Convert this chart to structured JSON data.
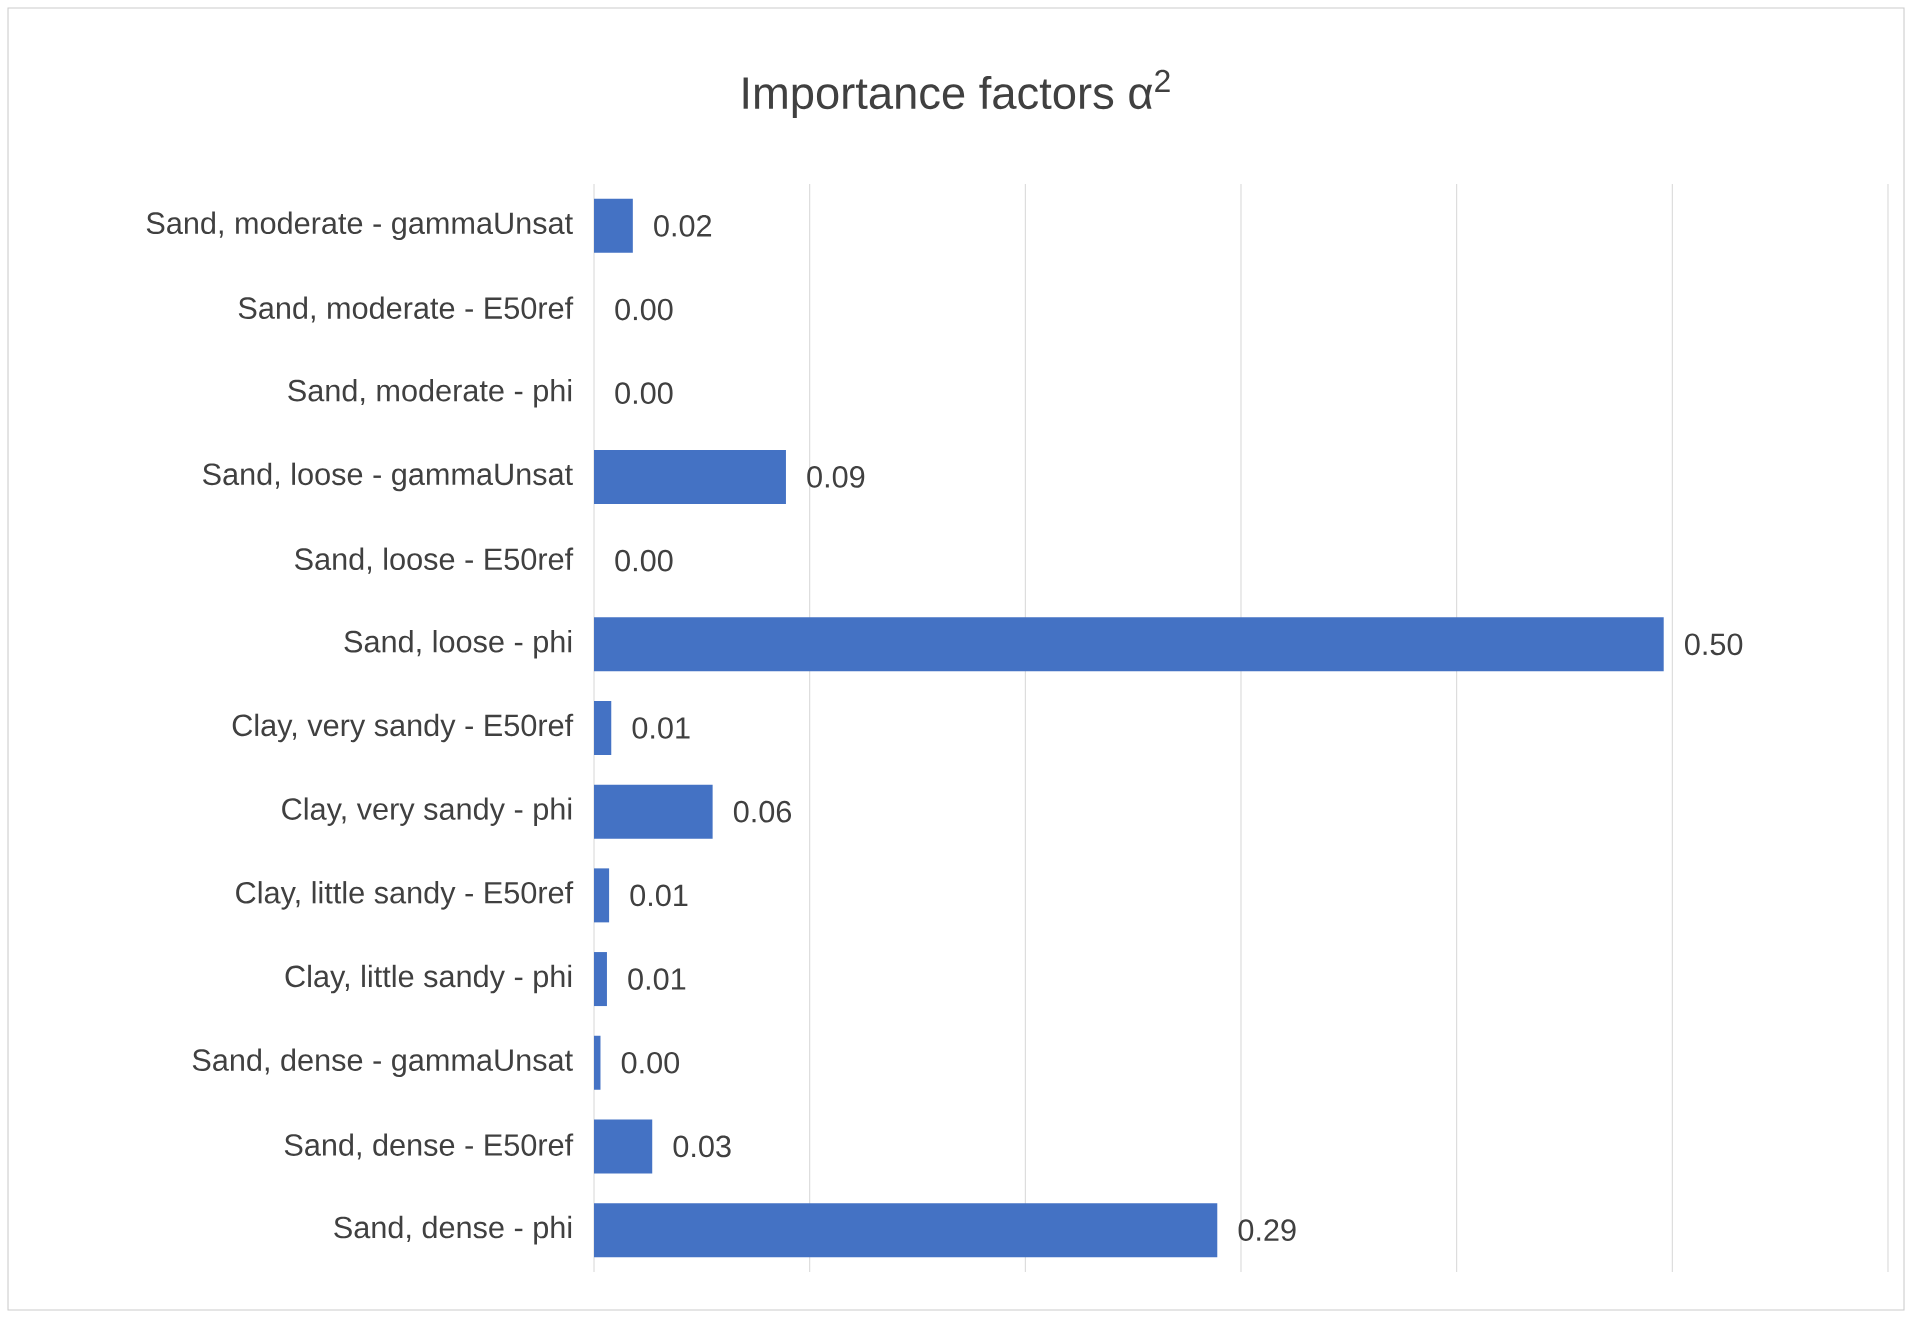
{
  "chart_data": {
    "type": "bar",
    "orientation": "horizontal",
    "title": "Importance factors α$^{2}$",
    "categories": [
      "Sand, moderate - gammaUnsat",
      "Sand, moderate - E50ref",
      "Sand, moderate - phi",
      "Sand, loose - gammaUnsat",
      "Sand, loose - E50ref",
      "Sand, loose - phi",
      "Clay, very sandy  - E50ref",
      "Clay, very sandy  - phi",
      "Clay, little sandy - E50ref",
      "Clay, little sandy - phi",
      "Sand, dense - gammaUnsat",
      "Sand, dense - E50ref",
      "Sand, dense - phi"
    ],
    "values": [
      0.018,
      0,
      0,
      0.089,
      0,
      0.496,
      0.008,
      0.055,
      0.007,
      0.006,
      0.003,
      0.027,
      0.289
    ],
    "value_labels": [
      "0.02",
      "0.00",
      "0.00",
      "0.09",
      "0.00",
      "0.50",
      "0.01",
      "0.06",
      "0.01",
      "0.01",
      "0.00",
      "0.03",
      "0.29"
    ],
    "color": "#4472c4",
    "xlim": [
      0,
      0.6
    ],
    "xticks": [
      {
        "value": 0,
        "label": null
      },
      {
        "value": 0.1,
        "label": null
      },
      {
        "value": 0.2,
        "label": null
      },
      {
        "value": 0.3,
        "label": null
      },
      {
        "value": 0.4,
        "label": null
      },
      {
        "value": 0.5,
        "label": null
      },
      {
        "value": 0.6,
        "label": null
      }
    ],
    "grid": "x",
    "tick_labels": "y"
  }
}
